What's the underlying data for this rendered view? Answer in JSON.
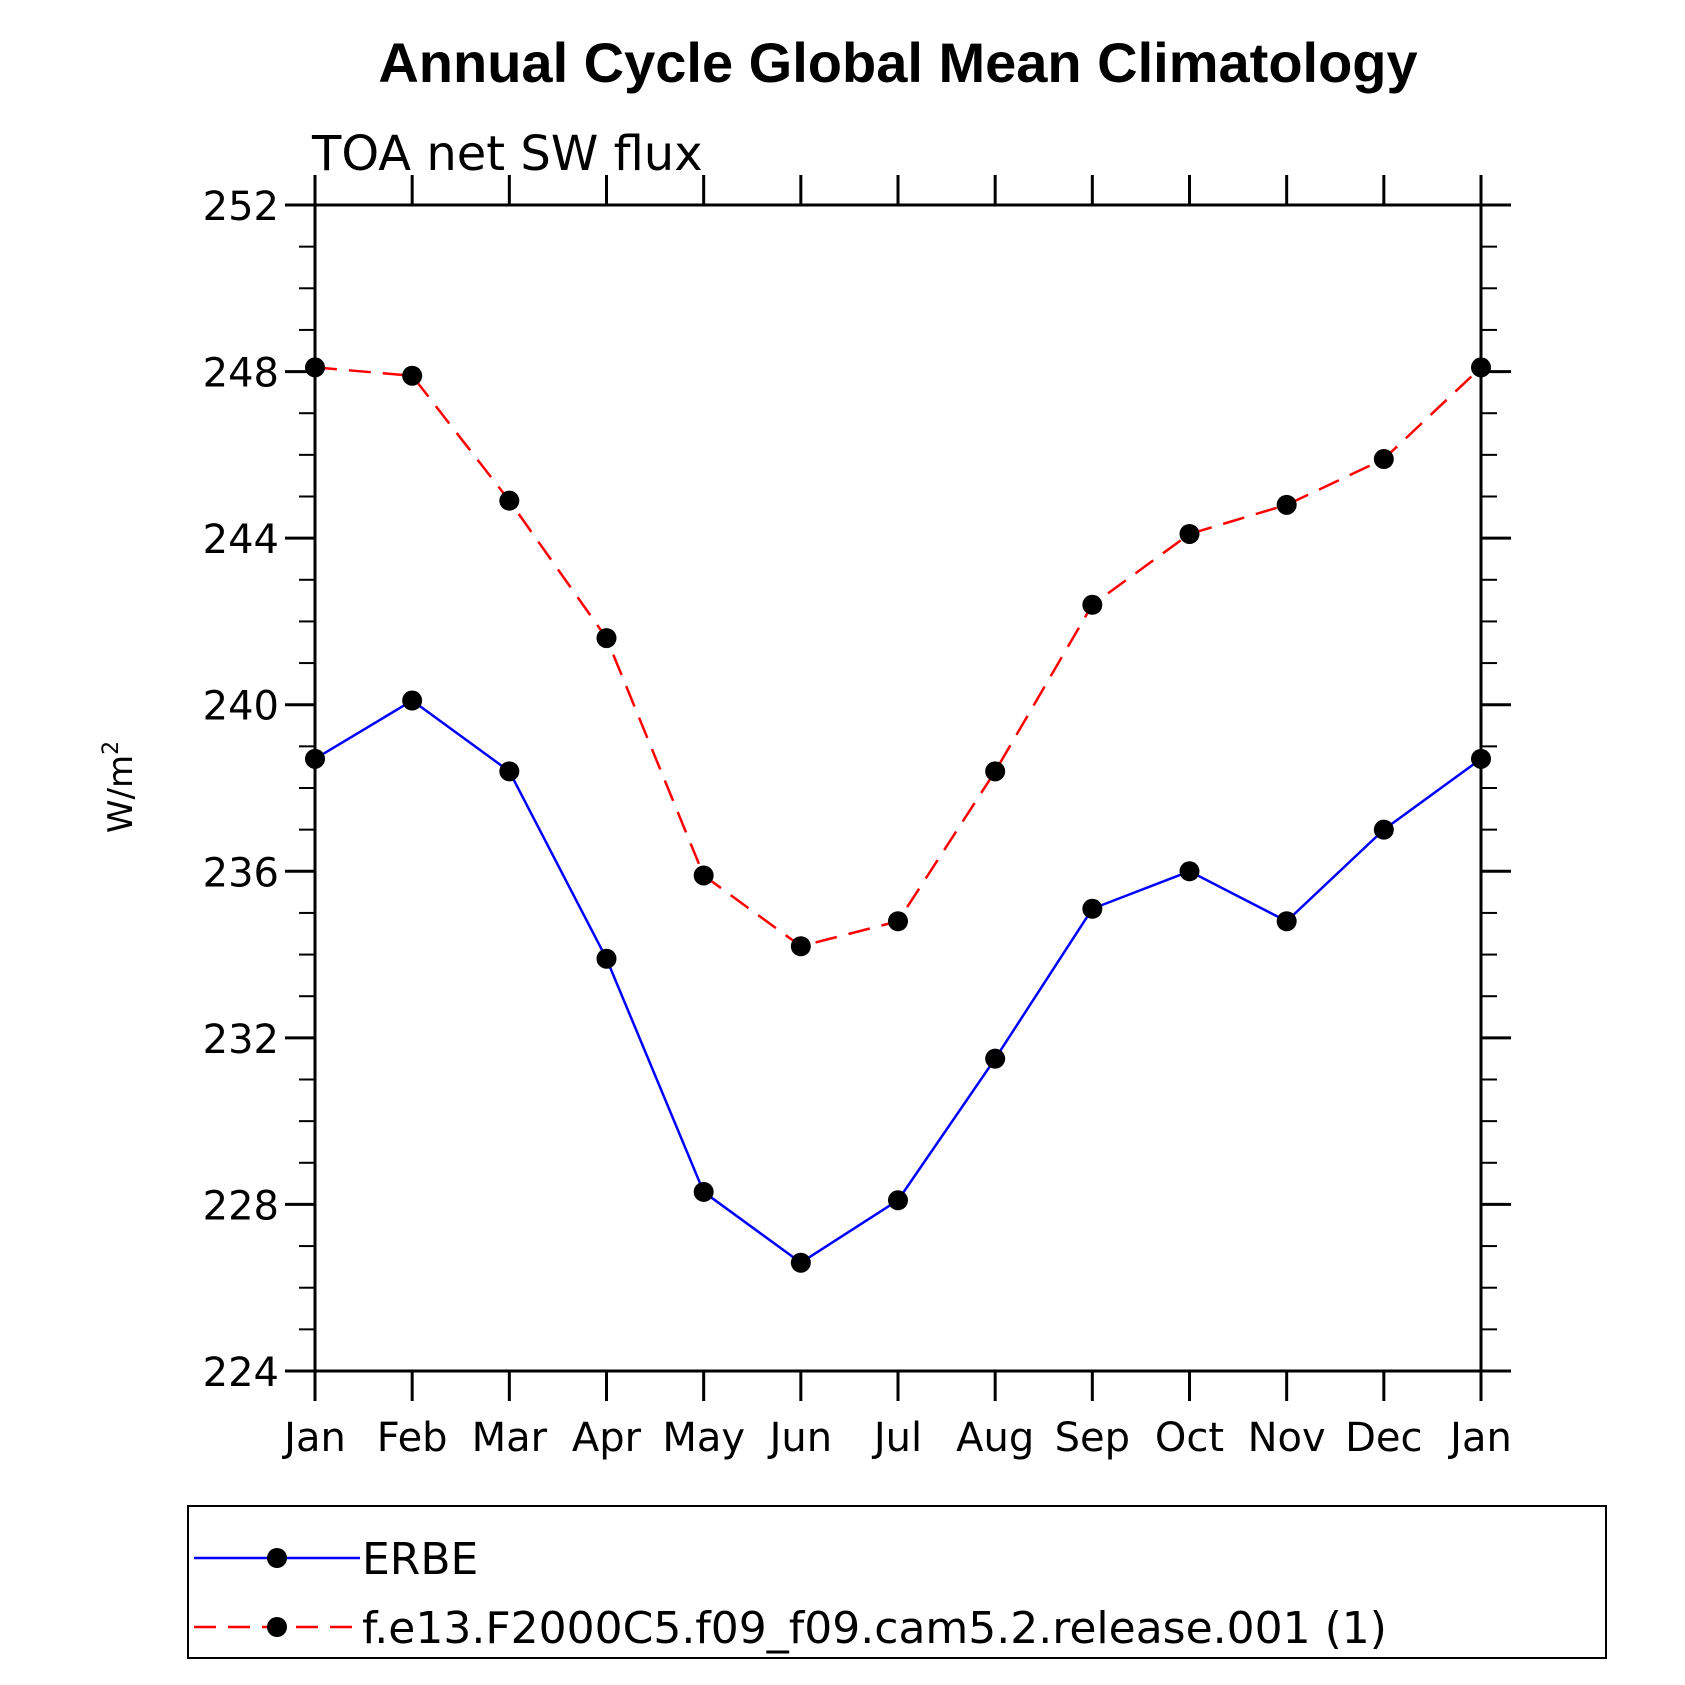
{
  "chart_data": {
    "type": "line",
    "title": "Annual Cycle Global Mean Climatology",
    "subtitle": "TOA net SW flux",
    "ylabel": "W/m",
    "ylabel_sup": "2",
    "xlabel": "",
    "categories": [
      "Jan",
      "Feb",
      "Mar",
      "Apr",
      "May",
      "Jun",
      "Jul",
      "Aug",
      "Sep",
      "Oct",
      "Nov",
      "Dec",
      "Jan"
    ],
    "ylim": [
      224,
      252
    ],
    "yticks": [
      224,
      228,
      232,
      236,
      240,
      244,
      248,
      252
    ],
    "grid": false,
    "legend_position": "bottom",
    "series": [
      {
        "name": "ERBE",
        "color": "#0000ff",
        "line_style": "solid",
        "marker": "filled-circle",
        "values": [
          238.7,
          240.1,
          238.4,
          233.9,
          228.3,
          226.6,
          228.1,
          231.5,
          235.1,
          236.0,
          234.8,
          237.0,
          238.7
        ]
      },
      {
        "name": "f.e13.F2000C5.f09_f09.cam5.2.release.001 (1)",
        "color": "#ff0000",
        "line_style": "dashed",
        "marker": "filled-circle",
        "values": [
          248.1,
          247.9,
          244.9,
          241.6,
          235.9,
          234.2,
          234.8,
          238.4,
          242.4,
          244.1,
          244.8,
          245.9,
          248.1
        ]
      }
    ]
  }
}
